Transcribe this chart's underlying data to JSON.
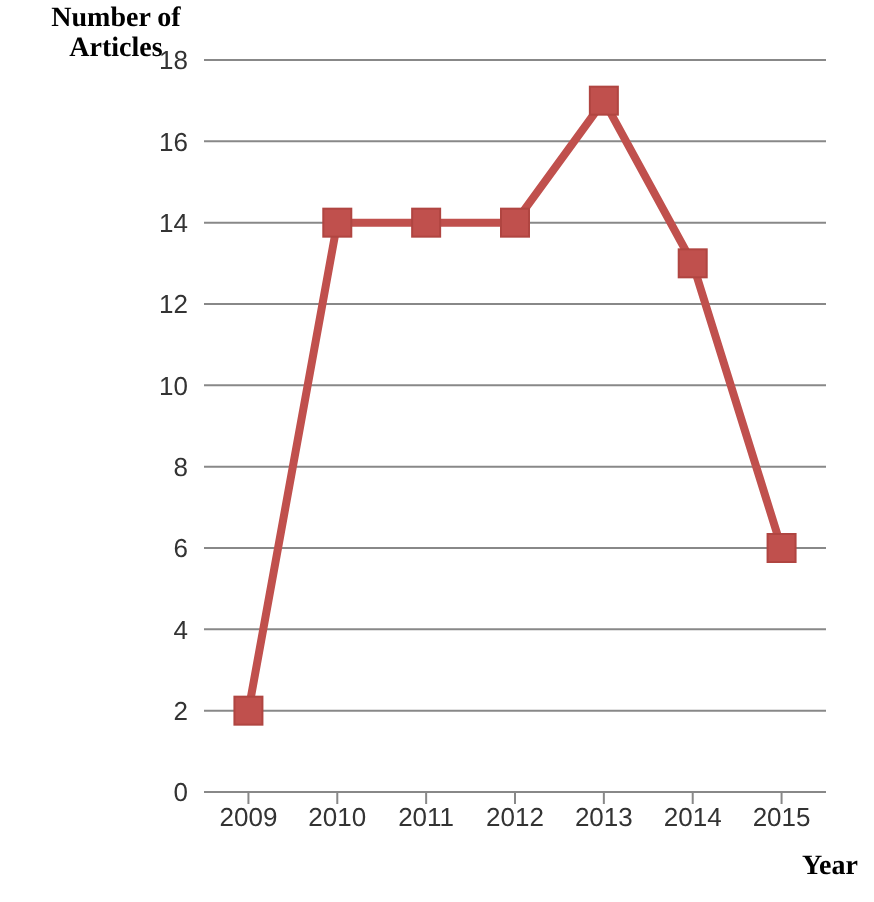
{
  "chart_data": {
    "type": "line",
    "xlabel": "Year",
    "ylabel": "Number of Articles",
    "categories": [
      "2009",
      "2010",
      "2011",
      "2012",
      "2013",
      "2014",
      "2015"
    ],
    "series": [
      {
        "color": "#c0504d",
        "values": [
          2,
          14,
          14,
          14,
          17,
          13,
          6
        ]
      }
    ],
    "ylim": [
      0,
      18
    ],
    "yticks": [
      0,
      2,
      4,
      6,
      8,
      10,
      12,
      14,
      16,
      18
    ],
    "grid": "y",
    "marker": "square",
    "line_style": "solid"
  }
}
